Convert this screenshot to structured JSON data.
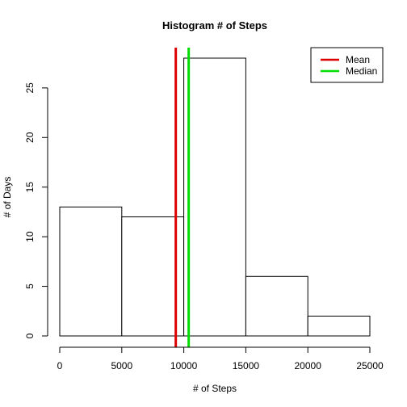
{
  "chart_data": {
    "type": "bar",
    "title": "Histogram # of Steps",
    "xlabel": "# of Steps",
    "ylabel": "# of Days",
    "xlim": [
      0,
      25000
    ],
    "ylim": [
      0,
      28
    ],
    "x_ticks": [
      0,
      5000,
      10000,
      15000,
      20000,
      25000
    ],
    "y_ticks": [
      0,
      5,
      10,
      15,
      20,
      25
    ],
    "bins": [
      {
        "x0": 0,
        "x1": 5000,
        "count": 13
      },
      {
        "x0": 5000,
        "x1": 10000,
        "count": 12
      },
      {
        "x0": 10000,
        "x1": 15000,
        "count": 28
      },
      {
        "x0": 15000,
        "x1": 20000,
        "count": 6
      },
      {
        "x0": 20000,
        "x1": 25000,
        "count": 2
      }
    ],
    "lines": [
      {
        "name": "Mean",
        "x": 9354,
        "color": "#dd0000"
      },
      {
        "name": "Median",
        "x": 10395,
        "color": "#00dd00"
      }
    ],
    "legend": {
      "placement": "top-right",
      "entries": [
        {
          "label": "Mean",
          "color": "#dd0000"
        },
        {
          "label": "Median",
          "color": "#00dd00"
        }
      ]
    },
    "grid": false
  }
}
